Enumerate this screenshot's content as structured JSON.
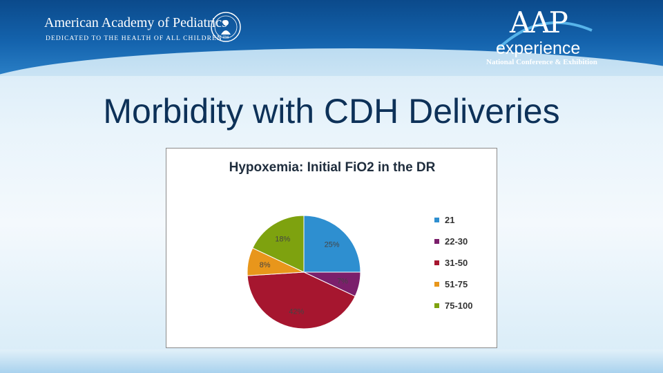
{
  "header": {
    "org_name": "American Academy of Pediatrics",
    "org_tagline": "DEDICATED TO THE HEALTH OF ALL CHILDREN™",
    "conference_brand": "AAP",
    "conference_brand_sub": "experience",
    "conference_subtitle": "National Conference & Exhibition"
  },
  "slide": {
    "title": "Morbidity with CDH Deliveries"
  },
  "colors": {
    "banner": "#1463ad",
    "title": "#0d3158"
  },
  "chart_data": {
    "type": "pie",
    "title": "Hypoxemia: Initial FiO2 in the DR",
    "categories": [
      "21",
      "22-30",
      "31-50",
      "51-75",
      "75-100"
    ],
    "values": [
      25,
      7,
      42,
      8,
      18
    ],
    "labels": [
      "25%",
      "7%",
      "42%",
      "8%",
      "18%"
    ],
    "colors": [
      "#2e8fd0",
      "#7b1f6b",
      "#a6162f",
      "#e8961b",
      "#7ea20f"
    ],
    "legend_position": "right"
  }
}
